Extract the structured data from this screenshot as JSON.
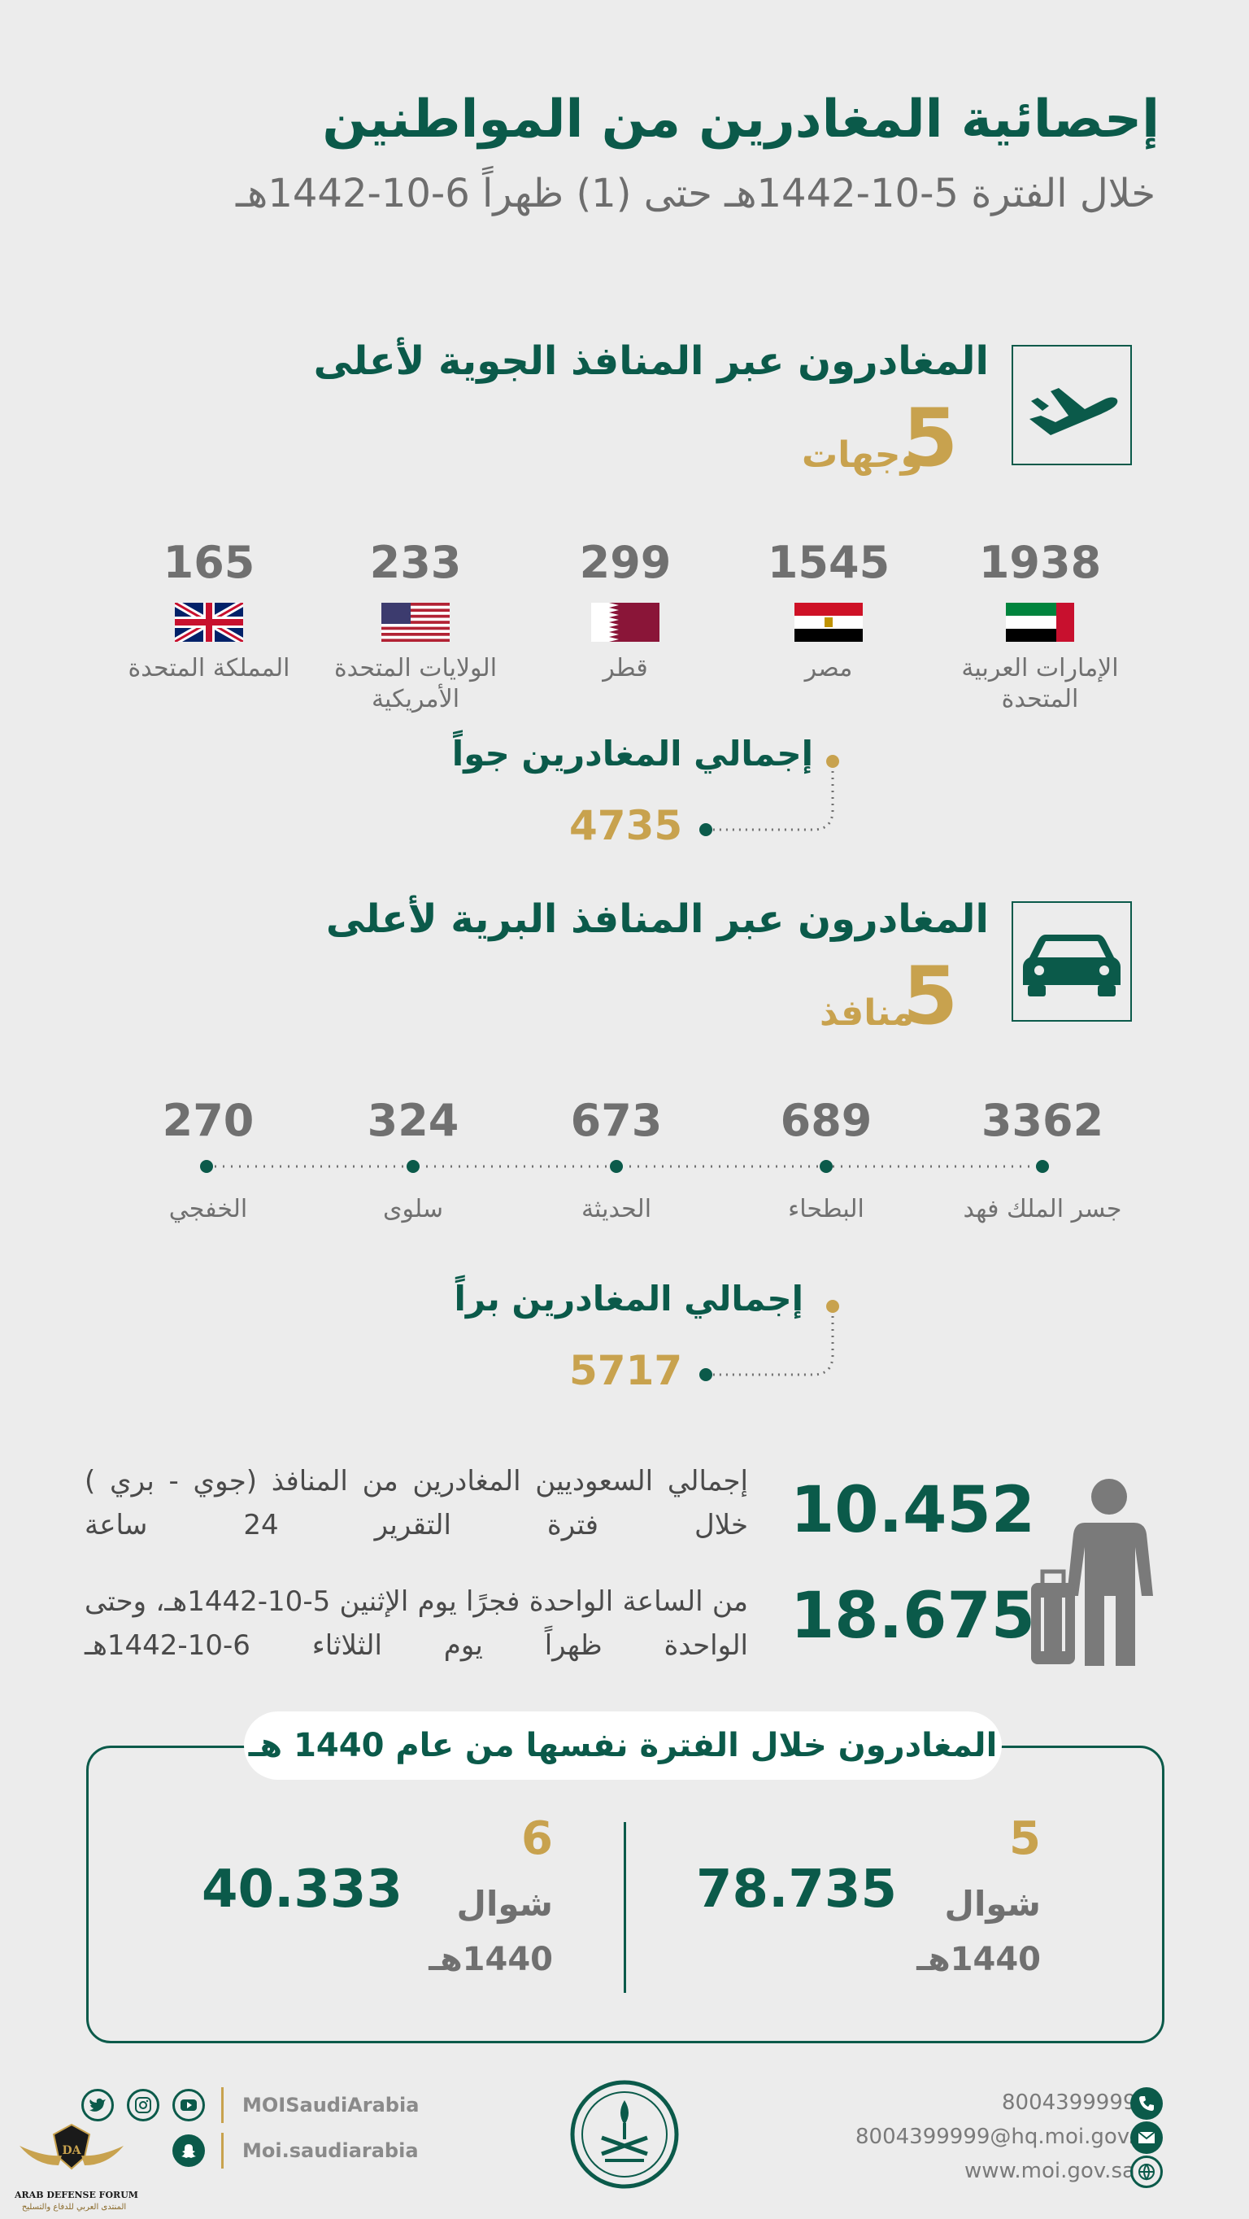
{
  "header": {
    "title": "إحصائية المغادرين من المواطنين",
    "subtitle": "خلال الفترة 5-10-1442هـ حتى (1) ظهراً 6-10-1442هـ"
  },
  "air": {
    "heading": "المغادرون عبر المنافذ الجوية لأعلى",
    "count": "5",
    "count_word": "وجهات",
    "icon": "airplane-icon",
    "destinations": [
      {
        "value": "1938",
        "name": "الإمارات العربية المتحدة",
        "flag": "uae-flag"
      },
      {
        "value": "1545",
        "name": "مصر",
        "flag": "egypt-flag"
      },
      {
        "value": "299",
        "name": "قطر",
        "flag": "qatar-flag"
      },
      {
        "value": "233",
        "name": "الولايات المتحدة الأمريكية",
        "flag": "usa-flag"
      },
      {
        "value": "165",
        "name": "المملكة المتحدة",
        "flag": "uk-flag"
      }
    ],
    "total_label": "إجمالي المغادرين جواً",
    "total_value": "4735"
  },
  "land": {
    "heading": "المغادرون عبر  المنافذ البرية لأعلى",
    "count": "5",
    "count_word": "منافذ",
    "icon": "car-icon",
    "ports": [
      {
        "value": "3362",
        "name": "جسر الملك فهد"
      },
      {
        "value": "689",
        "name": "البطحاء"
      },
      {
        "value": "673",
        "name": "الحديثة"
      },
      {
        "value": "324",
        "name": "سلوى"
      },
      {
        "value": "270",
        "name": "الخفجي"
      }
    ],
    "total_label": "إجمالي المغادرين براً",
    "total_value": "5717"
  },
  "summary": {
    "icon": "traveler-with-luggage-icon",
    "citizens_value": "10.452",
    "citizens_text": "إجمالي السعوديين المغادرين من المنافذ (جوي - بري ) خلال فترة التقرير 24 ساعة",
    "period_value": "18.675",
    "period_text": "من الساعة الواحدة فجرًا يوم الإثنين 5-10-1442هـ، وحتى الواحدة ظهراً يوم الثلاثاء 6-10-1442هـ"
  },
  "comparison": {
    "title": "المغادرون خلال الفترة نفسها من عام 1440 هـ",
    "items": [
      {
        "day": "5",
        "month": "شوال",
        "year": "1440هـ",
        "value": "78.735"
      },
      {
        "day": "6",
        "month": "شوال",
        "year": "1440هـ",
        "value": "40.333"
      }
    ]
  },
  "footer": {
    "phone": "8004399999",
    "email": "8004399999@hq.moi.gov.sa",
    "website": "www.moi.gov.sa",
    "handle_main": "MOISaudiArabia",
    "handle_snap": "Moi.saudiarabia",
    "watermark_line1": "ARAB DEFENSE FORUM",
    "watermark_line2": "المنتدى العربي للدفاع والتسليح"
  },
  "colors": {
    "primary_green": "#0b5a4a",
    "gold": "#c8a24e",
    "gray_text": "#707070",
    "background": "#ececec"
  }
}
